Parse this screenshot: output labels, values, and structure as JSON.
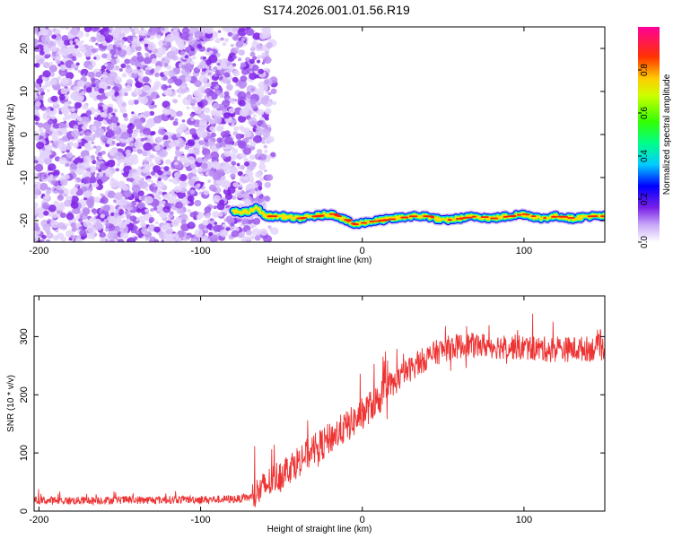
{
  "title": "S174.2026.001.01.56.R19",
  "chart_data": [
    {
      "type": "heatmap",
      "xlabel": "Height of straight line (km)",
      "ylabel": "Frequency (Hz)",
      "xlim": [
        -203,
        150
      ],
      "ylim": [
        -25,
        25
      ],
      "xticks": [
        -200,
        -100,
        0,
        100
      ],
      "yticks": [
        -20,
        -10,
        0,
        10,
        20
      ],
      "colorbar": {
        "label": "Normalized spectral amplitude",
        "range": [
          0,
          1
        ],
        "ticks": [
          0.0,
          0.2,
          0.4,
          0.6,
          0.8
        ]
      },
      "noise_region_x": [
        -203,
        -62
      ],
      "tone_track": {
        "x": [
          -80,
          -70,
          -65,
          -60,
          -50,
          -40,
          -30,
          -20,
          -15,
          -10,
          -5,
          0,
          10,
          20,
          30,
          40,
          50,
          60,
          70,
          80,
          90,
          100,
          110,
          120,
          130,
          140,
          150
        ],
        "freq": [
          -18,
          -18,
          -17,
          -19,
          -19,
          -19.5,
          -19,
          -18.5,
          -19,
          -20,
          -21,
          -20.5,
          -20,
          -19.5,
          -19,
          -19,
          -20,
          -19.5,
          -19,
          -19.5,
          -19,
          -18.5,
          -19.5,
          -19,
          -19.5,
          -19,
          -19
        ]
      }
    },
    {
      "type": "line",
      "xlabel": "Height of straight line (km)",
      "ylabel": "SNR (10 * v/v)",
      "xlim": [
        -203,
        150
      ],
      "ylim": [
        0,
        370
      ],
      "xticks": [
        -200,
        -100,
        0,
        100
      ],
      "yticks": [
        0,
        100,
        200,
        300
      ],
      "color": "#ee3333",
      "series": [
        {
          "x": [
            -203,
            -190,
            -170,
            -150,
            -130,
            -110,
            -90,
            -75,
            -68,
            -62,
            -55,
            -45,
            -35,
            -25,
            -15,
            -5,
            5,
            15,
            25,
            35,
            45,
            55,
            65,
            75,
            85,
            95,
            105,
            115,
            125,
            135,
            150
          ],
          "values": [
            18,
            18,
            18,
            19,
            19,
            20,
            20,
            21,
            25,
            38,
            55,
            75,
            95,
            115,
            135,
            155,
            180,
            205,
            235,
            255,
            272,
            282,
            285,
            285,
            283,
            282,
            280,
            278,
            278,
            279,
            280
          ]
        }
      ]
    }
  ]
}
